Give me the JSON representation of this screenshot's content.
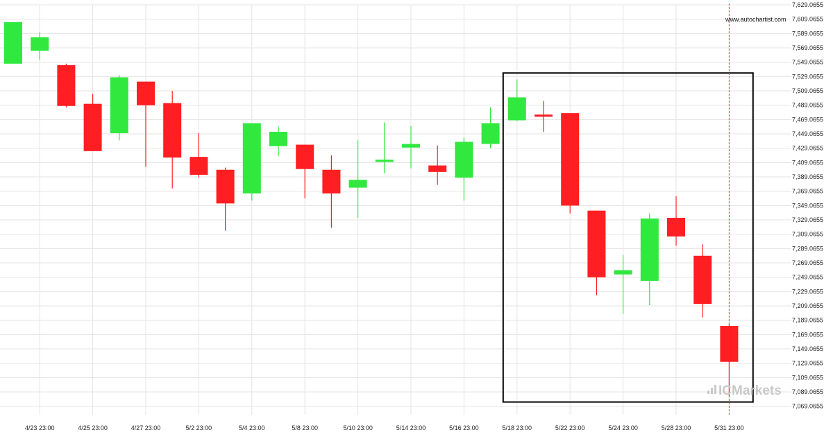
{
  "site_credit": "www.autochartist.com",
  "brand_logo_text": "ICMarkets",
  "colors": {
    "bullish": "#31e83f",
    "bearish": "#ff1e22",
    "grid": "#e3e3e3",
    "pattern_box": "#000000",
    "current_line": "#c05050",
    "brand": "#c9c9c9"
  },
  "chart_data": {
    "type": "candlestick",
    "title": "",
    "xlabel": "",
    "ylabel": "",
    "ylim": [
      7060.0655,
      7629.0655
    ],
    "y_ticks": [
      "7,629.0655",
      "7,609.0655",
      "7,589.0655",
      "7,569.0655",
      "7,549.0655",
      "7,529.0655",
      "7,509.0655",
      "7,489.0655",
      "7,469.0655",
      "7,449.0655",
      "7,429.0655",
      "7,409.0655",
      "7,389.0655",
      "7,369.0655",
      "7,349.0655",
      "7,329.0655",
      "7,309.0655",
      "7,289.0655",
      "7,269.0655",
      "7,249.0655",
      "7,229.0655",
      "7,209.0655",
      "7,189.0655",
      "7,169.0655",
      "7,149.0655",
      "7,129.0655",
      "7,109.0655",
      "7,089.0655",
      "7,069.0655"
    ],
    "x_tick_labels": [
      {
        "label": "4/23 23:00",
        "index": 1
      },
      {
        "label": "4/25 23:00",
        "index": 3
      },
      {
        "label": "4/27 23:00",
        "index": 5
      },
      {
        "label": "5/2 23:00",
        "index": 7
      },
      {
        "label": "5/4 23:00",
        "index": 9
      },
      {
        "label": "5/8 23:00",
        "index": 11
      },
      {
        "label": "5/10 23:00",
        "index": 13
      },
      {
        "label": "5/14 23:00",
        "index": 15
      },
      {
        "label": "5/16 23:00",
        "index": 17
      },
      {
        "label": "5/18 23:00",
        "index": 19
      },
      {
        "label": "5/22 23:00",
        "index": 21
      },
      {
        "label": "5/24 23:00",
        "index": 23
      },
      {
        "label": "5/28 23:00",
        "index": 25
      },
      {
        "label": "5/31 23:00",
        "index": 27
      }
    ],
    "candles": [
      {
        "open": 7547,
        "high": 7605,
        "low": 7547,
        "close": 7605
      },
      {
        "open": 7565,
        "high": 7591,
        "low": 7552,
        "close": 7584
      },
      {
        "open": 7545,
        "high": 7547,
        "low": 7486,
        "close": 7488
      },
      {
        "open": 7491,
        "high": 7505,
        "low": 7426,
        "close": 7425
      },
      {
        "open": 7450,
        "high": 7531,
        "low": 7440,
        "close": 7528
      },
      {
        "open": 7522,
        "high": 7522,
        "low": 7403,
        "close": 7489
      },
      {
        "open": 7492,
        "high": 7509,
        "low": 7373,
        "close": 7416
      },
      {
        "open": 7417,
        "high": 7450,
        "low": 7388,
        "close": 7392
      },
      {
        "open": 7399,
        "high": 7402,
        "low": 7314,
        "close": 7352
      },
      {
        "open": 7366,
        "high": 7464,
        "low": 7356,
        "close": 7464
      },
      {
        "open": 7432,
        "high": 7460,
        "low": 7418,
        "close": 7452
      },
      {
        "open": 7434,
        "high": 7434,
        "low": 7359,
        "close": 7400
      },
      {
        "open": 7399,
        "high": 7419,
        "low": 7318,
        "close": 7366
      },
      {
        "open": 7374,
        "high": 7440,
        "low": 7332,
        "close": 7385
      },
      {
        "open": 7410,
        "high": 7465,
        "low": 7394,
        "close": 7413
      },
      {
        "open": 7430,
        "high": 7460,
        "low": 7401,
        "close": 7435
      },
      {
        "open": 7405,
        "high": 7433,
        "low": 7378,
        "close": 7396
      },
      {
        "open": 7388,
        "high": 7444,
        "low": 7356,
        "close": 7438
      },
      {
        "open": 7435,
        "high": 7486,
        "low": 7429,
        "close": 7464
      },
      {
        "open": 7468,
        "high": 7525,
        "low": 7467,
        "close": 7500
      },
      {
        "open": 7476,
        "high": 7495,
        "low": 7452,
        "close": 7473
      },
      {
        "open": 7478,
        "high": 7478,
        "low": 7338,
        "close": 7349
      },
      {
        "open": 7342,
        "high": 7342,
        "low": 7224,
        "close": 7249
      },
      {
        "open": 7253,
        "high": 7280,
        "low": 7198,
        "close": 7259
      },
      {
        "open": 7244,
        "high": 7338,
        "low": 7210,
        "close": 7331
      },
      {
        "open": 7332,
        "high": 7362,
        "low": 7293,
        "close": 7306
      },
      {
        "open": 7279,
        "high": 7295,
        "low": 7193,
        "close": 7212
      },
      {
        "open": 7181,
        "high": 7184,
        "low": 7083,
        "close": 7131
      }
    ],
    "pattern_box": {
      "start_index": 19,
      "end_index": 27.9,
      "high": 7534,
      "low": 7075
    },
    "current_time_index": 27
  }
}
